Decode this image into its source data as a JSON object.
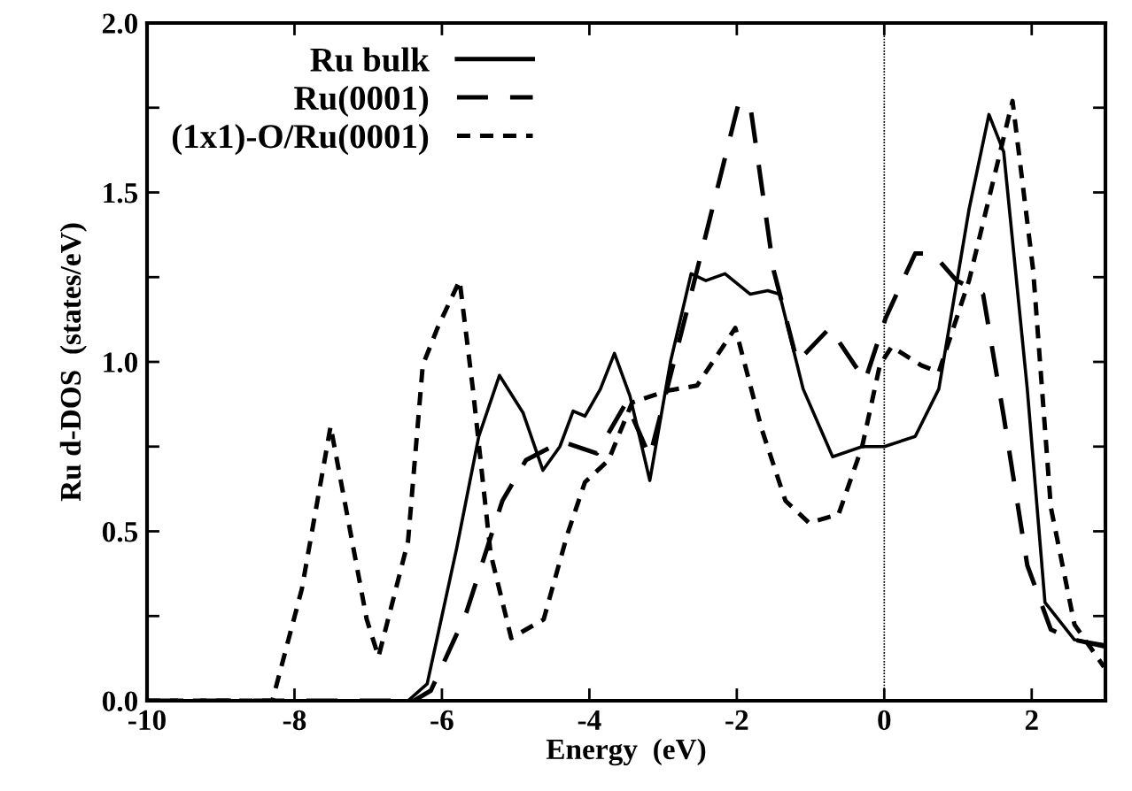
{
  "chart_data": {
    "type": "line",
    "xlabel": "Energy  (eV)",
    "ylabel": "Ru d-DOS  (states/eV)",
    "xlim": [
      -10,
      3
    ],
    "ylim": [
      0,
      2.0
    ],
    "xticks": [
      -10,
      -8,
      -6,
      -4,
      -2,
      0,
      2
    ],
    "yticks": [
      {
        "value": 0,
        "label": "0.0"
      },
      {
        "value": 0.25,
        "label": null
      },
      {
        "value": 0.5,
        "label": "0.5"
      },
      {
        "value": 0.75,
        "label": null
      },
      {
        "value": 1,
        "label": "1.0"
      },
      {
        "value": 1.25,
        "label": null
      },
      {
        "value": 1.5,
        "label": "1.5"
      },
      {
        "value": 1.75,
        "label": null
      },
      {
        "value": 2,
        "label": "2.0"
      }
    ],
    "legend": "top left",
    "grid": false,
    "marker": "none",
    "ref_lines": [
      {
        "axis": "x",
        "value": 0,
        "line_style": "dotted",
        "color": "#000000"
      }
    ],
    "series": [
      {
        "name": "Ru bulk",
        "color": "#000000",
        "line_style": "solid",
        "x": [
          -10,
          -6.46,
          -6.2,
          -5.8,
          -5.5,
          -5.22,
          -4.9,
          -4.63,
          -4.4,
          -4.22,
          -4.06,
          -3.85,
          -3.66,
          -3.45,
          -3.18,
          -2.9,
          -2.62,
          -2.42,
          -2.16,
          -1.82,
          -1.58,
          -1.42,
          -1.1,
          -0.7,
          -0.3,
          0,
          0.42,
          0.74,
          1.15,
          1.42,
          1.62,
          1.94,
          2.18,
          2.58,
          3
        ],
        "values": [
          0,
          0,
          0.05,
          0.45,
          0.78,
          0.96,
          0.85,
          0.68,
          0.75,
          0.855,
          0.84,
          0.92,
          1.025,
          0.9,
          0.65,
          1.0,
          1.26,
          1.24,
          1.26,
          1.2,
          1.21,
          1.2,
          0.92,
          0.72,
          0.75,
          0.75,
          0.78,
          0.92,
          1.45,
          1.73,
          1.62,
          0.92,
          0.29,
          0.18,
          0.165
        ]
      },
      {
        "name": "Ru(0001)",
        "color": "#000000",
        "line_style": "dashed",
        "x": [
          -10,
          -6.38,
          -6.15,
          -5.74,
          -5.67,
          -5.18,
          -4.86,
          -4.38,
          -3.9,
          -3.5,
          -3.18,
          -2.62,
          -1.98,
          -1.82,
          -1.5,
          -1.18,
          -0.74,
          -0.26,
          0.02,
          0.42,
          0.66,
          0.98,
          1.34,
          1.62,
          1.94,
          2.26,
          2.58,
          3
        ],
        "values": [
          0,
          0,
          0.03,
          0.225,
          0.26,
          0.59,
          0.71,
          0.765,
          0.73,
          0.88,
          0.72,
          1.2,
          1.76,
          1.76,
          1.27,
          1.0,
          1.1,
          0.945,
          1.13,
          1.32,
          1.32,
          1.24,
          1.2,
          0.84,
          0.4,
          0.21,
          0.18,
          0.16
        ]
      },
      {
        "name": "(1x1)-O/Ru(0001)",
        "color": "#000000",
        "line_style": "dotted",
        "x": [
          -10,
          -8.3,
          -7.9,
          -7.51,
          -7.02,
          -6.86,
          -6.46,
          -6.26,
          -6.06,
          -5.76,
          -5.58,
          -5.34,
          -5.06,
          -4.62,
          -4.3,
          -4.06,
          -3.74,
          -3.42,
          -2.94,
          -2.54,
          -2.02,
          -1.66,
          -1.34,
          -1.02,
          -0.62,
          -0.3,
          -0.06,
          0.1,
          0.5,
          0.74,
          1.15,
          1.54,
          1.74,
          2.02,
          2.26,
          2.58,
          2.98
        ],
        "values": [
          0,
          0,
          0.33,
          0.81,
          0.24,
          0.13,
          0.47,
          0.99,
          1.1,
          1.24,
          0.92,
          0.435,
          0.185,
          0.24,
          0.49,
          0.645,
          0.71,
          0.88,
          0.915,
          0.93,
          1.1,
          0.8,
          0.59,
          0.525,
          0.55,
          0.75,
          0.99,
          1.045,
          0.99,
          0.97,
          1.24,
          1.59,
          1.77,
          1.27,
          0.57,
          0.225,
          0.1
        ]
      }
    ]
  }
}
